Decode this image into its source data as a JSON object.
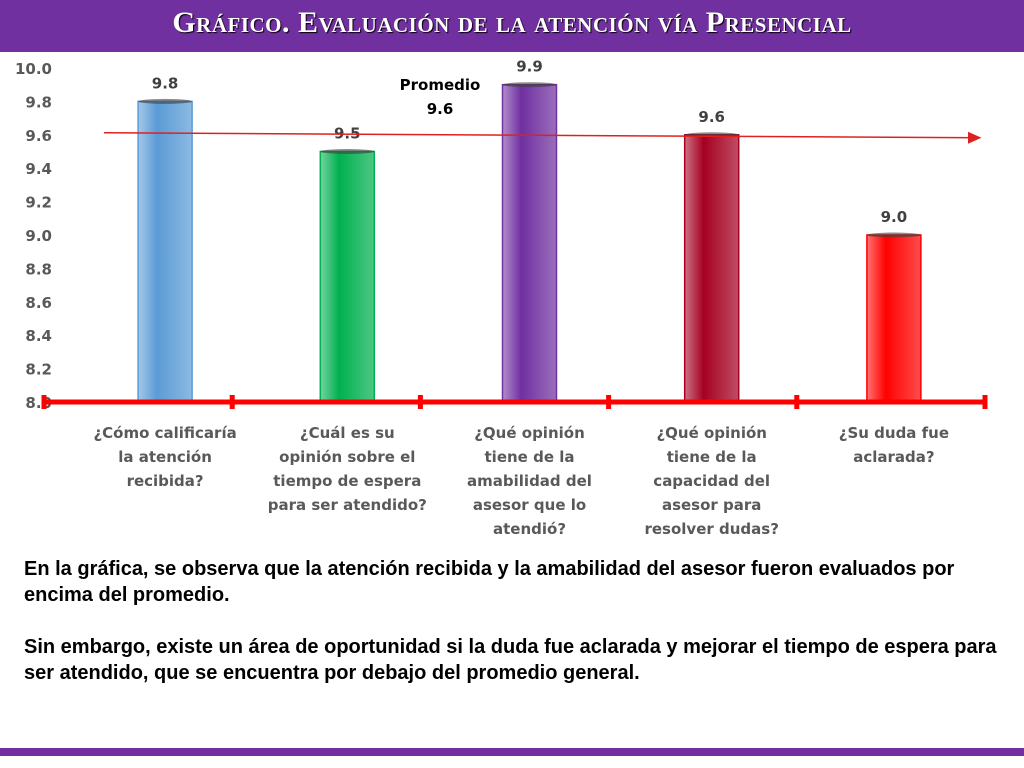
{
  "title": "Gráfico. Evaluación de la atención vía Presencial",
  "chart_data": {
    "type": "bar",
    "categories": [
      [
        "¿Cómo calificaría",
        "la atención",
        "recibida?"
      ],
      [
        "¿Cuál es su",
        "opinión sobre el",
        "tiempo de espera",
        "para ser atendido?"
      ],
      [
        "¿Qué opinión",
        "tiene de la",
        "amabilidad del",
        "asesor que lo",
        "atendió?"
      ],
      [
        "¿Qué opinión",
        "tiene de la",
        "capacidad del",
        "asesor para",
        "resolver dudas?"
      ],
      [
        "¿Su duda fue",
        "aclarada?"
      ]
    ],
    "values": [
      9.8,
      9.5,
      9.9,
      9.6,
      9.0
    ],
    "value_labels": [
      "9.8",
      "9.5",
      "9.9",
      "9.6",
      "9.0"
    ],
    "bar_colors": [
      "#5b9bd5",
      "#00b050",
      "#7030a0",
      "#a50021",
      "#ff0000"
    ],
    "ylim": [
      8.0,
      10.0
    ],
    "yticks": [
      "8.0",
      "8.2",
      "8.4",
      "8.6",
      "8.8",
      "9.0",
      "9.2",
      "9.4",
      "9.6",
      "9.8",
      "10.0"
    ],
    "average": {
      "value": 9.6,
      "label_lines": [
        "Promedio",
        "9.6"
      ],
      "color": "#e02020"
    },
    "axis_color": "#ff0000",
    "xlabel": "",
    "ylabel": ""
  },
  "paragraphs": [
    "En la gráfica, se observa que la atención recibida y la amabilidad del asesor fueron evaluados por encima del promedio.",
    "Sin embargo, existe un área de oportunidad si la duda fue aclarada y mejorar el tiempo de espera para ser atendido, que se encuentra por debajo del promedio general."
  ]
}
